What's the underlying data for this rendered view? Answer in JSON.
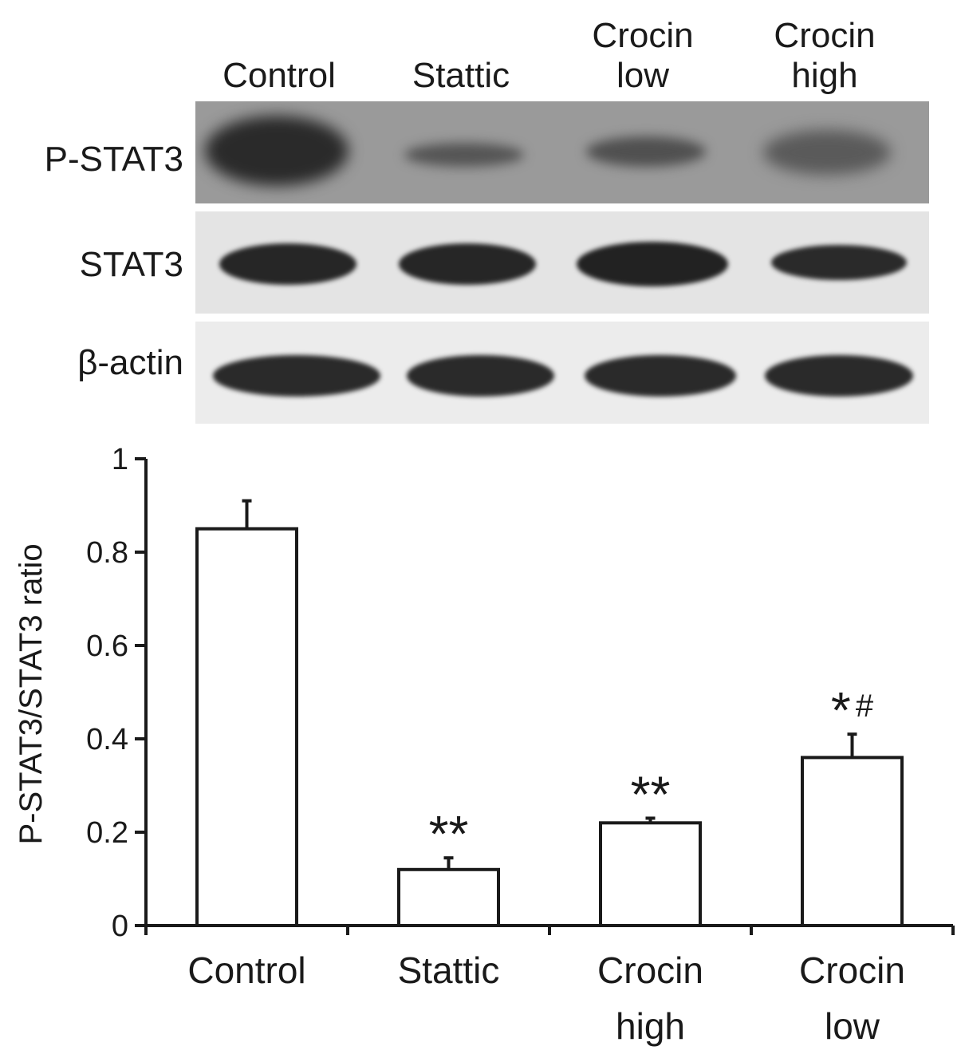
{
  "blot": {
    "lanes": [
      {
        "line1": "",
        "line2": "Control"
      },
      {
        "line1": "",
        "line2": "Stattic"
      },
      {
        "line1": "Crocin",
        "line2": "low"
      },
      {
        "line1": "Crocin",
        "line2": "high"
      }
    ],
    "rows": [
      "P-STAT3",
      "STAT3",
      "β-actin"
    ]
  },
  "chart_data": {
    "type": "bar",
    "categories": [
      [
        "Control"
      ],
      [
        "Stattic"
      ],
      [
        "Crocin",
        "high"
      ],
      [
        "Crocin",
        "low"
      ]
    ],
    "values": [
      0.85,
      0.12,
      0.22,
      0.36
    ],
    "errors": [
      0.06,
      0.025,
      0.01,
      0.05
    ],
    "annotations": [
      "",
      "**",
      "**",
      "*#"
    ],
    "ylabel": "P-STAT3/STAT3 ratio",
    "ylim": [
      0,
      1
    ],
    "yticks": [
      0,
      0.2,
      0.4,
      0.6,
      0.8,
      1
    ],
    "ytick_labels": [
      "0",
      "0.2",
      "0.4",
      "0.6",
      "0.8",
      "1"
    ],
    "bar_fill": "#ffffff",
    "bar_stroke": "#1a1a1a",
    "grid": false
  }
}
